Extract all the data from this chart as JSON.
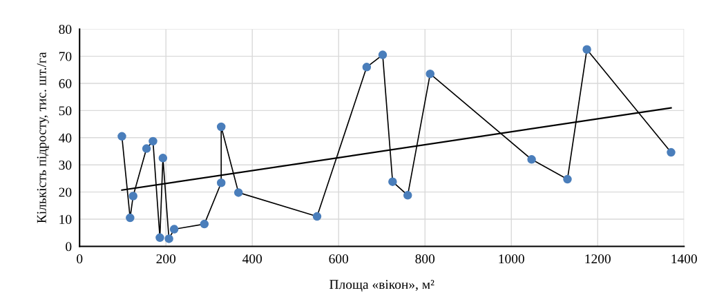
{
  "chart_data": {
    "type": "line",
    "xlabel": "Площа «вікон», м²",
    "ylabel": "Кількість підросту, тис. шт./га",
    "series": [
      {
        "color": "#4a7ebb",
        "marker": "circle",
        "x": [
          98,
          117,
          124,
          155,
          170,
          186,
          193,
          207,
          219,
          289,
          328,
          328,
          368,
          550,
          665,
          702,
          725,
          760,
          812,
          1047,
          1130,
          1175,
          1370
        ],
        "values": [
          40.5,
          10.5,
          18.5,
          36,
          38.7,
          3.2,
          32.5,
          2.8,
          6.3,
          8.2,
          23.4,
          44,
          19.8,
          11,
          66,
          70.5,
          23.8,
          18.8,
          63.5,
          32,
          24.7,
          72.5,
          34.6
        ]
      },
      {
        "color": "#000000",
        "marker": "none",
        "x": [
          98,
          1370
        ],
        "values": [
          20.7,
          51
        ]
      }
    ],
    "xlim": [
      0,
      1400
    ],
    "xticks": [
      0,
      200,
      400,
      600,
      800,
      1000,
      1200,
      1400
    ],
    "ylim": [
      0,
      80
    ],
    "yticks": [
      0,
      10,
      20,
      30,
      40,
      50,
      60,
      70,
      80
    ],
    "grid": true,
    "legend": false
  }
}
